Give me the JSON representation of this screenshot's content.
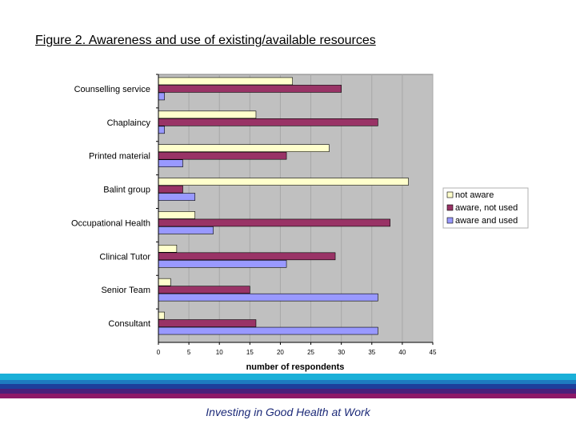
{
  "page": {
    "title": "Figure 2.  Awareness and use of existing/available resources",
    "footer": "Investing in Good Health at Work"
  },
  "colors": {
    "not_aware": "#ffffcc",
    "aware_not_used": "#993366",
    "aware_and_used": "#9999ff",
    "plot_bg": "#c0c0c0",
    "band_colors": [
      "#1ab0d8",
      "#1e7bc0",
      "#1d3f9c",
      "#4a1f7a",
      "#8e1868"
    ]
  },
  "chart_data": {
    "type": "bar",
    "orientation": "horizontal",
    "title": "",
    "xlabel": "number of respondents",
    "ylabel": "",
    "xlim": [
      0,
      45
    ],
    "xticks": [
      0,
      5,
      10,
      15,
      20,
      25,
      30,
      35,
      40,
      45
    ],
    "grid": "vertical",
    "legend_position": "right",
    "categories": [
      "Counselling service",
      "Chaplaincy",
      "Printed material",
      "Balint group",
      "Occupational Health",
      "Clinical Tutor",
      "Senior Team",
      "Consultant"
    ],
    "series": [
      {
        "name": "not aware",
        "values": [
          22,
          16,
          28,
          41,
          6,
          3,
          2,
          1
        ]
      },
      {
        "name": "aware, not used",
        "values": [
          30,
          36,
          21,
          4,
          38,
          29,
          15,
          16
        ]
      },
      {
        "name": "aware and used",
        "values": [
          1,
          1,
          4,
          6,
          9,
          21,
          36,
          36
        ]
      }
    ]
  }
}
